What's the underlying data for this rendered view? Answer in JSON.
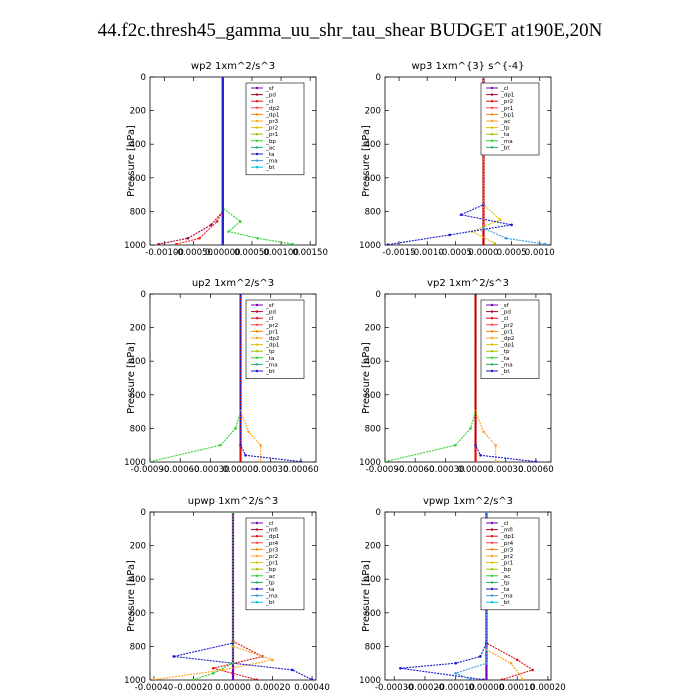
{
  "title": "44.f2c.thresh45_gamma_uu_shr_tau_shear  BUDGET at190E,20N",
  "chart_data": [
    {
      "type": "line",
      "title": "wp2   1xm^2/s^3",
      "ylabel": "Pressure [hPa]",
      "y_ticks": [
        "0",
        "200",
        "400",
        "600",
        "800",
        "1000"
      ],
      "x_ticks": [
        "-0.00100",
        "-0.00050",
        "0.00000",
        "0.00050",
        "0.00100",
        "0.00150"
      ],
      "xlim": [
        -0.00125,
        0.0016
      ],
      "ylim": [
        1000,
        0
      ],
      "y_reversed": true,
      "legend": [
        "_sf",
        "_pd",
        "_cl",
        "_dp2",
        "_dp1",
        "_pr3",
        "_pr2",
        "_pr1",
        "_bp",
        "_ac",
        "_ta",
        "_ma",
        "_bt"
      ],
      "series": [
        {
          "name": "_sf",
          "color": "#7a00b8",
          "points": [
            [
              0,
              0
            ],
            [
              0,
              1000
            ]
          ]
        },
        {
          "name": "_pd",
          "color": "#b00030",
          "points": [
            [
              0,
              0
            ],
            [
              0,
              800
            ],
            [
              -0.0002,
              880
            ],
            [
              -0.0006,
              960
            ],
            [
              -0.0011,
              995
            ]
          ]
        },
        {
          "name": "_cl",
          "color": "#ff1f1f",
          "points": [
            [
              0,
              0
            ],
            [
              0,
              800
            ],
            [
              -0.0001,
              860
            ],
            [
              -0.0004,
              960
            ],
            [
              -0.0008,
              995
            ]
          ]
        },
        {
          "name": "_pr1",
          "color": "#2fd02f",
          "points": [
            [
              0,
              0
            ],
            [
              0,
              780
            ],
            [
              0.0003,
              860
            ],
            [
              0.0001,
              920
            ],
            [
              0.0006,
              960
            ],
            [
              0.0012,
              995
            ]
          ]
        },
        {
          "name": "_ma",
          "color": "#2222cc",
          "points": [
            [
              0,
              0
            ],
            [
              0,
              1000
            ]
          ]
        }
      ]
    },
    {
      "type": "line",
      "title": "wp3   1xm^{3} s^{-4}",
      "ylabel": "Pressure [hPa]",
      "y_ticks": [
        "0",
        "200",
        "400",
        "600",
        "800",
        "1000"
      ],
      "x_ticks": [
        "-0.0015",
        "-0.0010",
        "-0.0005",
        "0.0000",
        "0.0005",
        "0.0010"
      ],
      "xlim": [
        -0.00175,
        0.0012
      ],
      "ylim": [
        1000,
        0
      ],
      "y_reversed": true,
      "legend": [
        "_cl",
        "_dp1",
        "_pr2",
        "_pr1",
        "_bp1",
        "_ac",
        "_tp",
        "_ta",
        "_ma",
        "_bt"
      ],
      "series": [
        {
          "name": "_cl",
          "color": "#cc0000",
          "points": [
            [
              0,
              0
            ],
            [
              0,
              1000
            ]
          ]
        },
        {
          "name": "_pr1",
          "color": "#e0c000",
          "points": [
            [
              0,
              0
            ],
            [
              0,
              760
            ],
            [
              0.0003,
              850
            ],
            [
              -0.0002,
              920
            ],
            [
              0.0002,
              990
            ]
          ]
        },
        {
          "name": "_tp",
          "color": "#1a1acc",
          "points": [
            [
              0,
              0
            ],
            [
              0,
              760
            ],
            [
              -0.0004,
              820
            ],
            [
              0.0005,
              880
            ],
            [
              -0.0006,
              940
            ],
            [
              -0.0017,
              998
            ]
          ]
        },
        {
          "name": "_ta",
          "color": "#3a9ad9",
          "points": [
            [
              0,
              0
            ],
            [
              0,
              900
            ],
            [
              0.0004,
              960
            ],
            [
              0.0011,
              995
            ]
          ]
        }
      ]
    },
    {
      "type": "line",
      "title": "up2   1xm^2/s^3",
      "ylabel": "Pressure [hPa]",
      "y_ticks": [
        "0",
        "200",
        "400",
        "600",
        "800",
        "1000"
      ],
      "x_ticks": [
        "-0.00090",
        "-0.00060",
        "-0.00030",
        "0.00000",
        "0.00030",
        "0.00060"
      ],
      "xlim": [
        -0.0009,
        0.00075
      ],
      "ylim": [
        1000,
        0
      ],
      "y_reversed": true,
      "legend": [
        "_sf",
        "_pd",
        "_cl",
        "_pr2",
        "_pr1",
        "_dp2",
        "_dp1",
        "_tp",
        "_ta",
        "_ma",
        "_bt"
      ],
      "series": [
        {
          "name": "_sf",
          "color": "#e01010",
          "points": [
            [
              0,
              0
            ],
            [
              0,
              1000
            ]
          ]
        },
        {
          "name": "_dp1",
          "color": "#2fd02f",
          "points": [
            [
              0,
              0
            ],
            [
              0,
              700
            ],
            [
              -5e-05,
              800
            ],
            [
              -0.0002,
              900
            ],
            [
              -0.0009,
              998
            ]
          ]
        },
        {
          "name": "_pr1",
          "color": "#ffa020",
          "points": [
            [
              0,
              0
            ],
            [
              0,
              700
            ],
            [
              8e-05,
              820
            ],
            [
              0.0002,
              900
            ],
            [
              0.0002,
              998
            ]
          ]
        },
        {
          "name": "_tp",
          "color": "#1a1acc",
          "points": [
            [
              0,
              0
            ],
            [
              0,
              900
            ],
            [
              5e-05,
              960
            ],
            [
              0.0006,
              998
            ]
          ]
        }
      ]
    },
    {
      "type": "line",
      "title": "vp2   1xm^2/s^3",
      "ylabel": "Pressure [hPa]",
      "y_ticks": [
        "0",
        "200",
        "400",
        "600",
        "800",
        "1000"
      ],
      "x_ticks": [
        "-0.00090",
        "-0.00060",
        "-0.00030",
        "0.00000",
        "0.00030",
        "0.00060"
      ],
      "xlim": [
        -0.0009,
        0.00075
      ],
      "ylim": [
        1000,
        0
      ],
      "y_reversed": true,
      "legend": [
        "_sf",
        "_pd",
        "_cl",
        "_pr2",
        "_pr1",
        "_dp2",
        "_dp1",
        "_tp",
        "_ta",
        "_ma",
        "_bt"
      ],
      "series": [
        {
          "name": "_sf",
          "color": "#e01010",
          "points": [
            [
              0,
              0
            ],
            [
              0,
              1000
            ]
          ]
        },
        {
          "name": "_dp1",
          "color": "#2fd02f",
          "points": [
            [
              0,
              0
            ],
            [
              0,
              700
            ],
            [
              -5e-05,
              800
            ],
            [
              -0.0002,
              900
            ],
            [
              -0.0009,
              998
            ]
          ]
        },
        {
          "name": "_pr1",
          "color": "#ffa020",
          "points": [
            [
              0,
              0
            ],
            [
              0,
              700
            ],
            [
              8e-05,
              820
            ],
            [
              0.0002,
              900
            ],
            [
              0.0002,
              998
            ]
          ]
        },
        {
          "name": "_tp",
          "color": "#1a1acc",
          "points": [
            [
              0,
              0
            ],
            [
              0,
              900
            ],
            [
              5e-05,
              960
            ],
            [
              0.0006,
              998
            ]
          ]
        }
      ]
    },
    {
      "type": "line",
      "title": "upwp   1xm^2/s^3",
      "ylabel": "Pressure [hPa]",
      "y_ticks": [
        "0",
        "200",
        "400",
        "600",
        "800",
        "1000"
      ],
      "x_ticks": [
        "-0.00040",
        "-0.00020",
        "0.00000",
        "0.00020",
        "0.00040"
      ],
      "xlim": [
        -0.00042,
        0.00042
      ],
      "ylim": [
        1000,
        0
      ],
      "y_reversed": true,
      "legend": [
        "_cl",
        "_mfl",
        "_dp1",
        "_pr4",
        "_pr3",
        "_pr2",
        "_pr1",
        "_bp",
        "_ac",
        "_tp",
        "_ta",
        "_ma",
        "_bt"
      ],
      "series": [
        {
          "name": "_cl",
          "color": "#7a00b8",
          "points": [
            [
              0,
              0
            ],
            [
              0,
              1000
            ]
          ]
        },
        {
          "name": "_pr1",
          "color": "#e01010",
          "points": [
            [
              0,
              0
            ],
            [
              0,
              770
            ],
            [
              0.00015,
              860
            ],
            [
              -0.0001,
              930
            ],
            [
              0.00012,
              998
            ]
          ]
        },
        {
          "name": "_pr2",
          "color": "#ffa020",
          "points": [
            [
              0,
              0
            ],
            [
              0,
              800
            ],
            [
              0.0002,
              880
            ],
            [
              -5e-05,
              940
            ],
            [
              -0.0004,
              998
            ]
          ]
        },
        {
          "name": "_tp",
          "color": "#1a1acc",
          "points": [
            [
              0,
              0
            ],
            [
              0,
              780
            ],
            [
              -0.0003,
              860
            ],
            [
              0.0003,
              940
            ],
            [
              0.0004,
              998
            ]
          ]
        },
        {
          "name": "_bp",
          "color": "#2fd02f",
          "points": [
            [
              0,
              0
            ],
            [
              0,
              900
            ],
            [
              -0.0001,
              960
            ],
            [
              -0.0002,
              998
            ]
          ]
        }
      ]
    },
    {
      "type": "line",
      "title": "vpwp   1xm^2/s^3",
      "ylabel": "Pressure [hPa]",
      "y_ticks": [
        "0",
        "200",
        "400",
        "600",
        "800",
        "1000"
      ],
      "x_ticks": [
        "-0.00030",
        "-0.00020",
        "-0.00010",
        "0.00000",
        "0.00010",
        "0.00020"
      ],
      "xlim": [
        -0.00033,
        0.00021
      ],
      "ylim": [
        1000,
        0
      ],
      "y_reversed": true,
      "legend": [
        "_cl",
        "_mfl",
        "_dp1",
        "_pr4",
        "_pr3",
        "_pr2",
        "_pr1",
        "_bp",
        "_ac",
        "_tp",
        "_ta",
        "_ma",
        "_bt"
      ],
      "series": [
        {
          "name": "_cl",
          "color": "#7a00b8",
          "points": [
            [
              0,
              0
            ],
            [
              0,
              1000
            ]
          ]
        },
        {
          "name": "_pr1",
          "color": "#e01010",
          "points": [
            [
              0,
              0
            ],
            [
              0,
              780
            ],
            [
              0.0001,
              880
            ],
            [
              0.00015,
              940
            ],
            [
              5e-05,
              998
            ]
          ]
        },
        {
          "name": "_pr2",
          "color": "#ffa020",
          "points": [
            [
              0,
              0
            ],
            [
              0,
              820
            ],
            [
              8e-05,
              900
            ],
            [
              0.00012,
              998
            ]
          ]
        },
        {
          "name": "_tp",
          "color": "#1a1acc",
          "points": [
            [
              0,
              0
            ],
            [
              0,
              780
            ],
            [
              -2e-05,
              860
            ],
            [
              -0.0001,
              900
            ],
            [
              -0.00028,
              930
            ],
            [
              -1e-05,
              998
            ]
          ]
        },
        {
          "name": "_ta",
          "color": "#3a9ad9",
          "points": [
            [
              0,
              0
            ],
            [
              0,
              900
            ],
            [
              -0.0001,
              960
            ],
            [
              -5e-05,
              998
            ]
          ]
        }
      ]
    }
  ]
}
